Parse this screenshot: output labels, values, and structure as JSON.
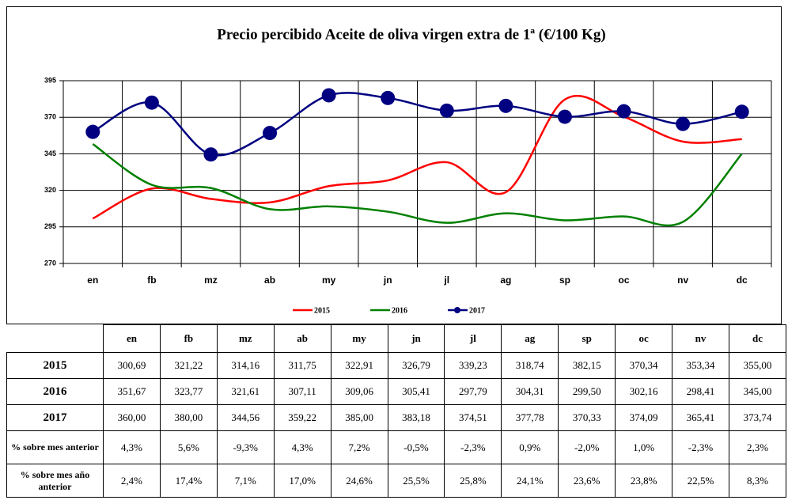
{
  "chart_data": {
    "type": "line",
    "title": "Precio percibido Aceite de oliva virgen extra de 1ª (€/100 Kg)",
    "categories": [
      "en",
      "fb",
      "mz",
      "ab",
      "my",
      "jn",
      "jl",
      "ag",
      "sp",
      "oc",
      "nv",
      "dc"
    ],
    "series": [
      {
        "name": "2015",
        "color": "#ff0000",
        "values": [
          300.69,
          321.22,
          314.16,
          311.75,
          322.91,
          326.79,
          339.23,
          318.74,
          382.15,
          370.34,
          353.34,
          355.0
        ],
        "value_labels": [
          "300,69",
          "321,22",
          "314,16",
          "311,75",
          "322,91",
          "326,79",
          "339,23",
          "318,74",
          "382,15",
          "370,34",
          "353,34",
          "355,00"
        ]
      },
      {
        "name": "2016",
        "color": "#008000",
        "values": [
          351.67,
          323.77,
          321.61,
          307.11,
          309.06,
          305.41,
          297.79,
          304.31,
          299.5,
          302.16,
          298.41,
          345.0
        ],
        "value_labels": [
          "351,67",
          "323,77",
          "321,61",
          "307,11",
          "309,06",
          "305,41",
          "297,79",
          "304,31",
          "299,50",
          "302,16",
          "298,41",
          "345,00"
        ]
      },
      {
        "name": "2017",
        "color": "#000080",
        "marker": "circle",
        "values": [
          360.0,
          380.0,
          344.56,
          359.22,
          385.0,
          383.18,
          374.51,
          377.78,
          370.33,
          374.09,
          365.41,
          373.74
        ],
        "value_labels": [
          "360,00",
          "380,00",
          "344,56",
          "359,22",
          "385,00",
          "383,18",
          "374,51",
          "377,78",
          "370,33",
          "374,09",
          "365,41",
          "373,74"
        ]
      }
    ],
    "ylim": [
      270,
      395
    ],
    "yticks": [
      270,
      295,
      320,
      345,
      370,
      395
    ],
    "grid": true,
    "legend": "bottom"
  },
  "table": {
    "rows": [
      {
        "label": "% sobre mes anterior",
        "cells": [
          "4,3%",
          "5,6%",
          "-9,3%",
          "4,3%",
          "7,2%",
          "-0,5%",
          "-2,3%",
          "0,9%",
          "-2,0%",
          "1,0%",
          "-2,3%",
          "2,3%"
        ]
      },
      {
        "label": "% sobre mes año anterior",
        "cells": [
          "2,4%",
          "17,4%",
          "7,1%",
          "17,0%",
          "24,6%",
          "25,5%",
          "25,8%",
          "24,1%",
          "23,6%",
          "23,8%",
          "22,5%",
          "8,3%"
        ]
      }
    ]
  }
}
